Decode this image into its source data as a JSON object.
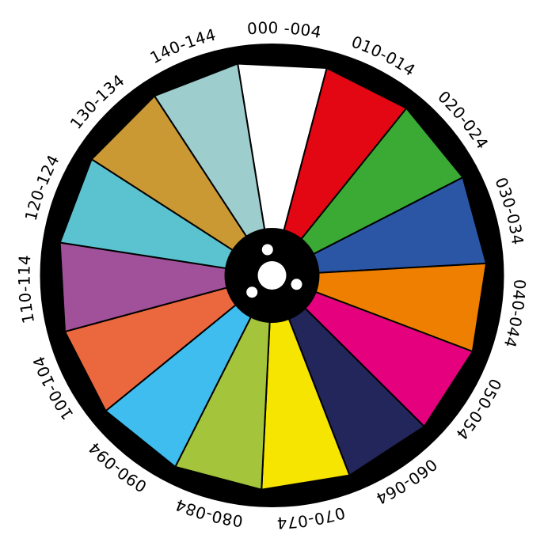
{
  "segments": [
    {
      "label": "000 -004",
      "color": "#ffffff"
    },
    {
      "label": "010-014",
      "color": "#e30613"
    },
    {
      "label": "020-024",
      "color": "#3aaa35"
    },
    {
      "label": "030-034",
      "color": "#2b56a5"
    },
    {
      "label": "040-044",
      "color": "#ee7f00"
    },
    {
      "label": "050-054",
      "color": "#e5007e"
    },
    {
      "label": "060-064",
      "color": "#23265a"
    },
    {
      "label": "070-074",
      "color": "#f6e500"
    },
    {
      "label": "080-084",
      "color": "#a3c43b"
    },
    {
      "label": "090-094",
      "color": "#3fbdee"
    },
    {
      "label": "100-104",
      "color": "#eb683f"
    },
    {
      "label": "110-114",
      "color": "#a05199"
    },
    {
      "label": "120-124",
      "color": "#5bc2d0"
    },
    {
      "label": "130-134",
      "color": "#ca9934"
    },
    {
      "label": "140-144",
      "color": "#9ecdce"
    }
  ],
  "rim_color": "#000000",
  "hub_color": "#000000",
  "hole_color": "#ffffff"
}
